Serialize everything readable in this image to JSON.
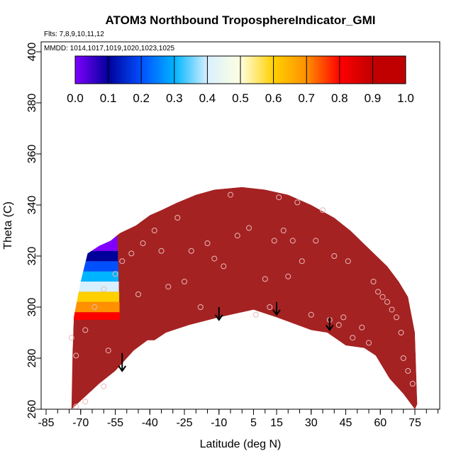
{
  "chart_data": {
    "type": "heatmap",
    "title": "ATOM3 Northbound TroposphereIndicator_GMI",
    "subtitle": "Flts: 7,8,9,10,11,12",
    "annotation": "MMDD: 1014,1017,1019,1020,1023,1025",
    "xlabel": "Latitude (deg N)",
    "ylabel": "Theta (C)",
    "xlim": [
      -85,
      85
    ],
    "ylim": [
      260,
      405
    ],
    "x_ticks": [
      -85,
      -70,
      -55,
      -40,
      -25,
      -10,
      5,
      15,
      30,
      45,
      60,
      75
    ],
    "y_ticks": [
      260,
      280,
      300,
      320,
      340,
      360,
      380,
      400
    ],
    "colorbar": {
      "ticks": [
        0.0,
        0.1,
        0.2,
        0.3,
        0.4,
        0.5,
        0.6,
        0.7,
        0.8,
        0.9,
        1.0
      ],
      "tick_labels": [
        "0.0",
        "0.1",
        "0.2",
        "0.3",
        "0.4",
        "0.5",
        "0.6",
        "0.7",
        "0.8",
        "0.9",
        "1.0"
      ],
      "colors": [
        "#7f00ff",
        "#00009a",
        "#0050ff",
        "#00b4ff",
        "#d8f0ff",
        "#ffffe0",
        "#ffd000",
        "#ff9000",
        "#ff0000",
        "#c00000"
      ]
    },
    "fill_color": "#a52222",
    "upper_boundary": [
      {
        "x": -73.5,
        "y": 283
      },
      {
        "x": -73,
        "y": 296
      },
      {
        "x": -70,
        "y": 310
      },
      {
        "x": -67,
        "y": 321
      },
      {
        "x": -62,
        "y": 324
      },
      {
        "x": -57,
        "y": 326
      },
      {
        "x": -53,
        "y": 329
      },
      {
        "x": -46,
        "y": 332
      },
      {
        "x": -40,
        "y": 336
      },
      {
        "x": -35,
        "y": 338
      },
      {
        "x": -28,
        "y": 341
      },
      {
        "x": -20,
        "y": 344
      },
      {
        "x": -12,
        "y": 346
      },
      {
        "x": 0,
        "y": 347
      },
      {
        "x": 10,
        "y": 346
      },
      {
        "x": 20,
        "y": 344
      },
      {
        "x": 30,
        "y": 340
      },
      {
        "x": 40,
        "y": 335
      },
      {
        "x": 47,
        "y": 330
      },
      {
        "x": 55,
        "y": 323
      },
      {
        "x": 63,
        "y": 316
      },
      {
        "x": 68,
        "y": 310
      },
      {
        "x": 72,
        "y": 304
      },
      {
        "x": 75,
        "y": 290
      },
      {
        "x": 76,
        "y": 262
      }
    ],
    "lower_boundary": [
      {
        "x": 75,
        "y": 260
      },
      {
        "x": 70,
        "y": 266
      },
      {
        "x": 64,
        "y": 272
      },
      {
        "x": 58,
        "y": 281
      },
      {
        "x": 53,
        "y": 284
      },
      {
        "x": 45,
        "y": 285
      },
      {
        "x": 37,
        "y": 290
      },
      {
        "x": 30,
        "y": 291
      },
      {
        "x": 15,
        "y": 296
      },
      {
        "x": 5,
        "y": 299
      },
      {
        "x": -10,
        "y": 296
      },
      {
        "x": -23,
        "y": 293
      },
      {
        "x": -33,
        "y": 290
      },
      {
        "x": -38,
        "y": 287
      },
      {
        "x": -41,
        "y": 287
      },
      {
        "x": -47,
        "y": 283
      },
      {
        "x": -55,
        "y": 275
      },
      {
        "x": -62,
        "y": 270
      },
      {
        "x": -68,
        "y": 265
      },
      {
        "x": -74,
        "y": 260
      }
    ],
    "gradient_region": {
      "x_range": [
        -73,
        -53
      ],
      "y_range": [
        294,
        331
      ],
      "layers": [
        {
          "y": 295,
          "value": 0.85
        },
        {
          "y": 298,
          "value": 0.7
        },
        {
          "y": 302,
          "value": 0.6
        },
        {
          "y": 306,
          "value": 0.45
        },
        {
          "y": 310,
          "value": 0.35
        },
        {
          "y": 314,
          "value": 0.25
        },
        {
          "y": 318,
          "value": 0.15
        },
        {
          "y": 322,
          "value": 0.08
        },
        {
          "y": 326,
          "value": 0.05
        }
      ]
    },
    "observations": [
      {
        "x": -72,
        "y": 261
      },
      {
        "x": -68,
        "y": 263
      },
      {
        "x": -60,
        "y": 269
      },
      {
        "x": -58,
        "y": 283
      },
      {
        "x": -72,
        "y": 281
      },
      {
        "x": -74,
        "y": 288
      },
      {
        "x": -68,
        "y": 291
      },
      {
        "x": -64,
        "y": 300
      },
      {
        "x": -60,
        "y": 307
      },
      {
        "x": -55,
        "y": 313
      },
      {
        "x": -52,
        "y": 318
      },
      {
        "x": -48,
        "y": 321
      },
      {
        "x": -45,
        "y": 305
      },
      {
        "x": -43,
        "y": 325
      },
      {
        "x": -38,
        "y": 330
      },
      {
        "x": -35,
        "y": 322
      },
      {
        "x": -32,
        "y": 308
      },
      {
        "x": -28,
        "y": 335
      },
      {
        "x": -25,
        "y": 310
      },
      {
        "x": -22,
        "y": 322
      },
      {
        "x": -18,
        "y": 300
      },
      {
        "x": -15,
        "y": 325
      },
      {
        "x": -12,
        "y": 319
      },
      {
        "x": -8,
        "y": 316
      },
      {
        "x": -5,
        "y": 344
      },
      {
        "x": -2,
        "y": 328
      },
      {
        "x": 3,
        "y": 331
      },
      {
        "x": 6,
        "y": 297
      },
      {
        "x": 10,
        "y": 311
      },
      {
        "x": 12,
        "y": 300
      },
      {
        "x": 14,
        "y": 326
      },
      {
        "x": 16,
        "y": 343
      },
      {
        "x": 18,
        "y": 330
      },
      {
        "x": 20,
        "y": 312
      },
      {
        "x": 22,
        "y": 326
      },
      {
        "x": 24,
        "y": 341
      },
      {
        "x": 26,
        "y": 318
      },
      {
        "x": 30,
        "y": 297
      },
      {
        "x": 32,
        "y": 326
      },
      {
        "x": 35,
        "y": 338
      },
      {
        "x": 38,
        "y": 295
      },
      {
        "x": 40,
        "y": 320
      },
      {
        "x": 42,
        "y": 293
      },
      {
        "x": 44,
        "y": 296
      },
      {
        "x": 46,
        "y": 318
      },
      {
        "x": 48,
        "y": 288
      },
      {
        "x": 52,
        "y": 292
      },
      {
        "x": 55,
        "y": 286
      },
      {
        "x": 57,
        "y": 310
      },
      {
        "x": 59,
        "y": 306
      },
      {
        "x": 61,
        "y": 304
      },
      {
        "x": 63,
        "y": 302
      },
      {
        "x": 65,
        "y": 299
      },
      {
        "x": 67,
        "y": 296
      },
      {
        "x": 69,
        "y": 290
      },
      {
        "x": 70,
        "y": 280
      },
      {
        "x": 72,
        "y": 275
      },
      {
        "x": 74,
        "y": 270
      }
    ],
    "arrows": [
      {
        "x": -52,
        "y_from": 282,
        "y_to": 275
      },
      {
        "x": -10,
        "y_from": 300,
        "y_to": 295
      },
      {
        "x": 15,
        "y_from": 302,
        "y_to": 297
      },
      {
        "x": 38,
        "y_from": 296,
        "y_to": 291
      }
    ]
  }
}
